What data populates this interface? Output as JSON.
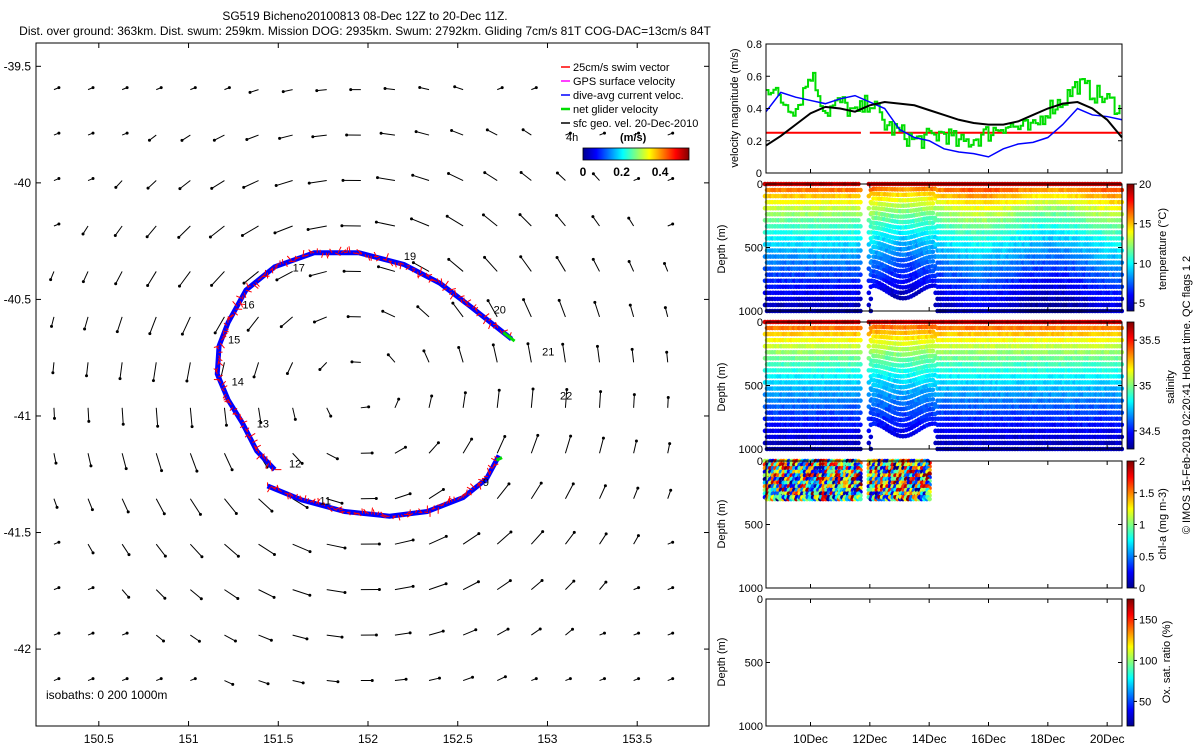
{
  "header": {
    "title": "SG519 Bicheno20100813 08-Dec 12Z to 20-Dec 11Z.",
    "subtitle": "Dist. over ground: 363km. Dist. swum: 259km. Mission DOG: 2935km. Swum: 2792km. Gliding 7cm/s 81T COG-DAC=13cm/s 84T"
  },
  "footer": {
    "credit": "© IMOS 15-Feb-2019 02:20:41 Hobart time. QC flags 1  2"
  },
  "colors": {
    "swim": "#ff0000",
    "gps": "#ff00ff",
    "dac": "#0000ff",
    "glider": "#00dd00",
    "geo": "#000000"
  },
  "chart_data": [
    {
      "id": "track_map",
      "type": "scatter",
      "title": "",
      "xlabel": "",
      "ylabel": "",
      "xlim": [
        150.15,
        153.9
      ],
      "ylim": [
        -42.33,
        -39.4
      ],
      "xticks": [
        "150.5",
        "151",
        "151.5",
        "152",
        "152.5",
        "153",
        "153.5"
      ],
      "xtick_values": [
        150.5,
        151,
        151.5,
        152,
        152.5,
        153,
        153.5
      ],
      "yticks": [
        "-39.5",
        "-40",
        "-40.5",
        "-41",
        "-41.5",
        "-42"
      ],
      "ytick_values": [
        -39.5,
        -40,
        -40.5,
        -41,
        -41.5,
        -42
      ],
      "legend": [
        "25cm/s swim vector",
        "GPS surface velocity",
        "dive-avg current veloc.",
        "net glider velocity",
        "sfc geo. vel. 20-Dec-2010"
      ],
      "legend_extra": "4h",
      "colorbar": {
        "title": "(m/s)",
        "ticks": [
          "0",
          "0.2",
          "0.4"
        ],
        "tick_values": [
          0,
          0.2,
          0.4
        ],
        "range": [
          0,
          0.55
        ]
      },
      "isobaths": "isobaths: 0   200   1000m",
      "track_segments": [
        [
          [
            151.48,
            -41.23
          ],
          [
            151.38,
            -41.15
          ],
          [
            151.3,
            -41.03
          ],
          [
            151.22,
            -40.93
          ],
          [
            151.16,
            -40.82
          ],
          [
            151.17,
            -40.7
          ],
          [
            151.22,
            -40.6
          ],
          [
            151.32,
            -40.46
          ],
          [
            151.48,
            -40.36
          ],
          [
            151.7,
            -40.3
          ],
          [
            151.95,
            -40.3
          ],
          [
            152.2,
            -40.35
          ],
          [
            152.4,
            -40.43
          ],
          [
            152.57,
            -40.53
          ],
          [
            152.8,
            -40.67
          ]
        ],
        [
          [
            151.44,
            -41.3
          ],
          [
            151.63,
            -41.36
          ],
          [
            151.87,
            -41.41
          ],
          [
            152.12,
            -41.43
          ],
          [
            152.33,
            -41.41
          ],
          [
            152.53,
            -41.35
          ],
          [
            152.66,
            -41.27
          ],
          [
            152.73,
            -41.17
          ]
        ]
      ],
      "day_labels": [
        {
          "label": "9",
          "lon": 152.64,
          "lat": -41.3
        },
        {
          "label": "11",
          "lon": 151.73,
          "lat": -41.38
        },
        {
          "label": "12",
          "lon": 151.56,
          "lat": -41.22
        },
        {
          "label": "13",
          "lon": 151.38,
          "lat": -41.05
        },
        {
          "label": "14",
          "lon": 151.24,
          "lat": -40.87
        },
        {
          "label": "15",
          "lon": 151.22,
          "lat": -40.69
        },
        {
          "label": "16",
          "lon": 151.3,
          "lat": -40.54
        },
        {
          "label": "17",
          "lon": 151.58,
          "lat": -40.38
        },
        {
          "label": "19",
          "lon": 152.2,
          "lat": -40.33
        },
        {
          "label": "20",
          "lon": 152.7,
          "lat": -40.56
        },
        {
          "label": "21",
          "lon": 152.97,
          "lat": -40.74
        },
        {
          "label": "22",
          "lon": 153.07,
          "lat": -40.93
        }
      ]
    },
    {
      "id": "velocity_panel",
      "type": "line",
      "ylabel": "velocity magnitude (m/s)",
      "xlim": [
        8.5,
        20.5
      ],
      "ylim": [
        0,
        0.8
      ],
      "yticks": [
        "0",
        "0.2",
        "0.4",
        "0.6",
        "0.8"
      ],
      "ytick_values": [
        0,
        0.2,
        0.4,
        0.6,
        0.8
      ],
      "series": [
        {
          "name": "25cm/s swim vector",
          "x": [
            8.5,
            11.7,
            12.0,
            20.5
          ],
          "values": [
            0.25,
            0.25,
            0.25,
            0.25
          ],
          "gap_after": 1
        },
        {
          "name": "dive-avg current veloc.",
          "x": [
            8.5,
            9.0,
            9.5,
            10.0,
            10.5,
            11.0,
            11.5,
            12.0,
            12.5,
            13.0,
            13.5,
            14.0,
            14.5,
            15.0,
            15.5,
            16.0,
            16.5,
            17.0,
            17.5,
            18.0,
            18.5,
            19.0,
            19.5,
            20.0,
            20.5
          ],
          "values": [
            0.38,
            0.5,
            0.47,
            0.45,
            0.43,
            0.46,
            0.48,
            0.44,
            0.4,
            0.27,
            0.22,
            0.2,
            0.15,
            0.13,
            0.12,
            0.1,
            0.15,
            0.18,
            0.19,
            0.22,
            0.3,
            0.4,
            0.36,
            0.35,
            0.33
          ]
        },
        {
          "name": "net glider velocity",
          "x": [
            8.5,
            9.0,
            9.5,
            10.0,
            10.5,
            11.0,
            11.5,
            12.0,
            12.5,
            13.0,
            13.5,
            14.0,
            14.5,
            15.0,
            15.5,
            16.0,
            16.5,
            17.0,
            17.5,
            18.0,
            18.5,
            19.0,
            19.5,
            20.0,
            20.5
          ],
          "values": [
            0.55,
            0.45,
            0.4,
            0.62,
            0.38,
            0.44,
            0.36,
            0.45,
            0.3,
            0.25,
            0.2,
            0.22,
            0.25,
            0.18,
            0.21,
            0.25,
            0.3,
            0.28,
            0.27,
            0.4,
            0.45,
            0.55,
            0.5,
            0.45,
            0.4
          ]
        },
        {
          "name": "sfc geo. vel.",
          "x": [
            8.5,
            9.0,
            9.5,
            10.0,
            10.5,
            11.0,
            11.5,
            12.0,
            12.5,
            13.0,
            13.5,
            14.0,
            14.5,
            15.0,
            15.5,
            16.0,
            16.5,
            17.0,
            17.5,
            18.0,
            18.5,
            19.0,
            19.5,
            20.0,
            20.5
          ],
          "values": [
            0.17,
            0.23,
            0.3,
            0.37,
            0.41,
            0.4,
            0.38,
            0.42,
            0.44,
            0.43,
            0.42,
            0.39,
            0.36,
            0.33,
            0.31,
            0.3,
            0.3,
            0.32,
            0.36,
            0.4,
            0.43,
            0.44,
            0.4,
            0.33,
            0.22
          ]
        }
      ]
    },
    {
      "id": "temperature_section",
      "type": "heatmap",
      "ylabel": "Depth (m)",
      "yticks": [
        "0",
        "500",
        "1000"
      ],
      "ytick_values": [
        0,
        500,
        1000
      ],
      "colorbar_label": "temperature (°C)",
      "colorbar_ticks": [
        "5",
        "10",
        "15",
        "20"
      ],
      "colorbar_tick_values": [
        5,
        10,
        15,
        20
      ],
      "clim": [
        4,
        20
      ],
      "time_ranges": [
        [
          8.5,
          11.7
        ],
        [
          12.0,
          20.5
        ]
      ],
      "max_depth": 1000,
      "surface_value": 19,
      "deep_value": 5
    },
    {
      "id": "salinity_section",
      "type": "heatmap",
      "ylabel": "Depth (m)",
      "yticks": [
        "0",
        "500",
        "1000"
      ],
      "ytick_values": [
        0,
        500,
        1000
      ],
      "colorbar_label": "salinity",
      "colorbar_ticks": [
        "34.5",
        "35",
        "35.5"
      ],
      "colorbar_tick_values": [
        34.5,
        35,
        35.5
      ],
      "clim": [
        34.3,
        35.7
      ],
      "time_ranges": [
        [
          8.5,
          11.7
        ],
        [
          12.0,
          20.5
        ]
      ],
      "max_depth": 1000,
      "surface_value": 35.6,
      "deep_value": 34.4
    },
    {
      "id": "chla_section",
      "type": "heatmap",
      "ylabel": "Depth (m)",
      "yticks": [
        "0",
        "500",
        "1000"
      ],
      "ytick_values": [
        0,
        500,
        1000
      ],
      "colorbar_label": "chl-a (mg m-3)",
      "colorbar_ticks": [
        "0",
        "0.5",
        "1",
        "1.5",
        "2"
      ],
      "colorbar_tick_values": [
        0,
        0.5,
        1,
        1.5,
        2
      ],
      "clim": [
        0,
        2
      ],
      "time_ranges": [
        [
          8.5,
          11.7
        ],
        [
          12.0,
          14.0
        ]
      ],
      "max_depth": 300
    },
    {
      "id": "oxygen_section",
      "type": "heatmap",
      "ylabel": "Depth (m)",
      "yticks": [
        "0",
        "500",
        "1000"
      ],
      "ytick_values": [
        0,
        500,
        1000
      ],
      "colorbar_label": "Ox. sat. ratio (%)",
      "colorbar_ticks": [
        "50",
        "100",
        "150"
      ],
      "colorbar_tick_values": [
        50,
        100,
        150
      ],
      "clim": [
        20,
        175
      ],
      "time_ranges": []
    }
  ],
  "time_axis": {
    "xlim": [
      8.5,
      20.5
    ],
    "ticks": [
      "10Dec",
      "12Dec",
      "14Dec",
      "16Dec",
      "18Dec",
      "20Dec"
    ],
    "tick_values": [
      10,
      12,
      14,
      16,
      18,
      20
    ]
  }
}
